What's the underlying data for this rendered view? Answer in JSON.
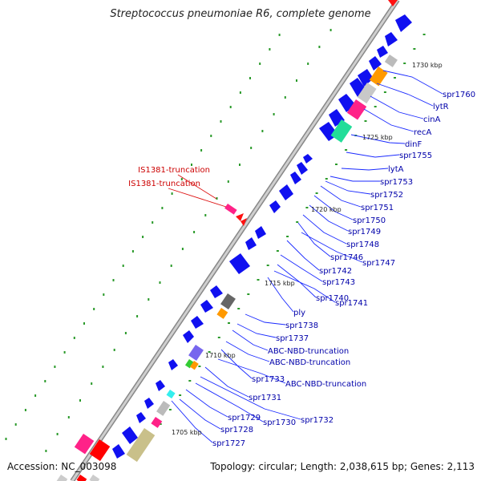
{
  "title": "Streptococcus pneumoniae R6, complete genome",
  "accession": "Accession: NC_003098",
  "topology": "Topology: circular; Length: 2,038,615 bp; Genes: 2,113",
  "scale_ticks": [
    "1705 kbp",
    "1710 kbp",
    "1715 kbp",
    "1720 kbp",
    "1725 kbp",
    "1730 kbp"
  ],
  "gene_labels": [
    "spr1760",
    "lytR",
    "cinA",
    "recA",
    "dinF",
    "spr1755",
    "lytA",
    "spr1753",
    "spr1752",
    "spr1751",
    "spr1750",
    "spr1749",
    "spr1748",
    "spr1746",
    "spr1747",
    "spr1742",
    "spr1743",
    "spr1740",
    "spr1741",
    "ply",
    "spr1738",
    "spr1737",
    "ABC-NBD-truncation",
    "ABC-NBD-truncation",
    "spr1733",
    "ABC-NBD-truncation",
    "spr1731",
    "spr1732",
    "spr1729",
    "spr1730",
    "spr1728",
    "spr1727"
  ],
  "mobile_labels": [
    "IS1381-truncation",
    "IS1381-truncation"
  ],
  "colors": {
    "cds": "#0000ee",
    "gene_label": "#0000aa",
    "mobile_label": "#cc0000",
    "mobile_element": "#ff1111",
    "tick": "#2a9a2a",
    "backbone": "#777777"
  }
}
